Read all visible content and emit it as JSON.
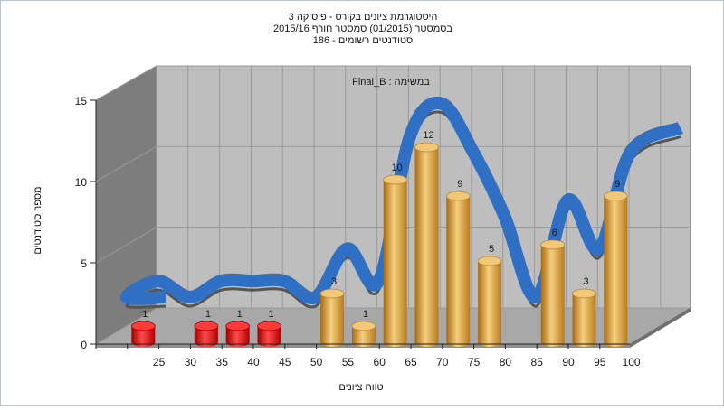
{
  "chart_data": {
    "type": "bar",
    "title_lines": [
      "היסטוגרמת ציונים בקורס - פיסיקה 3",
      "בסמסטר  (01/2015)  סמסטר חורף 2015/16",
      "186 - סטודנטים רשומים"
    ],
    "inner_title": "Final_B : במשימה",
    "xlabel": "טווח ציונים",
    "ylabel": "מספר סטודנטים",
    "x_tick_labels": [
      "25",
      "30",
      "35",
      "40",
      "45",
      "50",
      "55",
      "60",
      "65",
      "70",
      "75",
      "80",
      "85",
      "90",
      "95",
      "100"
    ],
    "y_ticks": [
      0,
      5,
      10,
      15
    ],
    "ylim": [
      0,
      15
    ],
    "bars": [
      {
        "x": 25,
        "value": 1,
        "color": "red"
      },
      {
        "x": 35,
        "value": 1,
        "color": "red"
      },
      {
        "x": 40,
        "value": 1,
        "color": "red"
      },
      {
        "x": 45,
        "value": 1,
        "color": "red"
      },
      {
        "x": 55,
        "value": 3,
        "color": "gold"
      },
      {
        "x": 60,
        "value": 1,
        "color": "gold"
      },
      {
        "x": 65,
        "value": 10,
        "color": "gold"
      },
      {
        "x": 70,
        "value": 12,
        "color": "gold"
      },
      {
        "x": 75,
        "value": 9,
        "color": "gold"
      },
      {
        "x": 80,
        "value": 5,
        "color": "gold"
      },
      {
        "x": 90,
        "value": 6,
        "color": "gold"
      },
      {
        "x": 95,
        "value": 3,
        "color": "gold"
      },
      {
        "x": 100,
        "value": 9,
        "color": "gold"
      }
    ],
    "ribbon_color": "#2f6fc4",
    "colors": {
      "red": "#d91a1a",
      "gold": "#e0a848",
      "back_wall": "#bebebe",
      "side_wall": "#7d7d7d",
      "floor": "#a8a8a8"
    }
  }
}
